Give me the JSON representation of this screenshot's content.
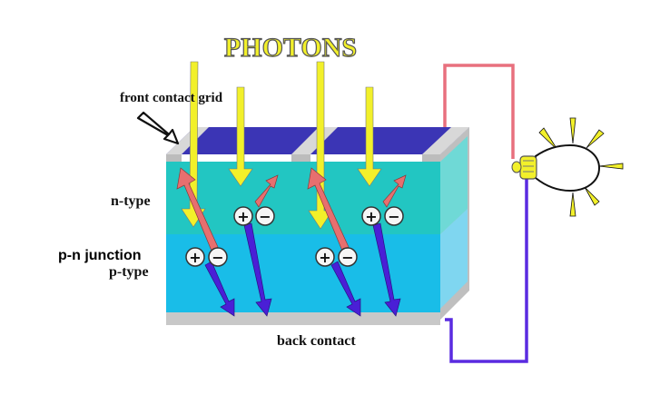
{
  "title": "PHOTONS",
  "labels": {
    "front_contact": "front contact grid",
    "n_type": "n-type",
    "pn_junction": "p-n junction",
    "p_type": "p-type",
    "back_contact": "back contact"
  },
  "signs": {
    "plus": "+",
    "minus": "−"
  },
  "colors": {
    "photon": "#f2f02a",
    "hole_arrow": "#e76f6f",
    "electron_arrow": "#4a1fd6",
    "n_layer": "#22c6c2",
    "p_layer": "#19bde8",
    "top_surface": "#3b35b5",
    "contact": "#c8c8c8",
    "wire_top": "#e8707e",
    "wire_bottom": "#5a2be0",
    "bulb": "#f2f02a"
  },
  "icons": [
    "photon-arrow",
    "hole-arrow",
    "electron-arrow",
    "light-bulb-icon",
    "pointer-arrow-icon"
  ]
}
